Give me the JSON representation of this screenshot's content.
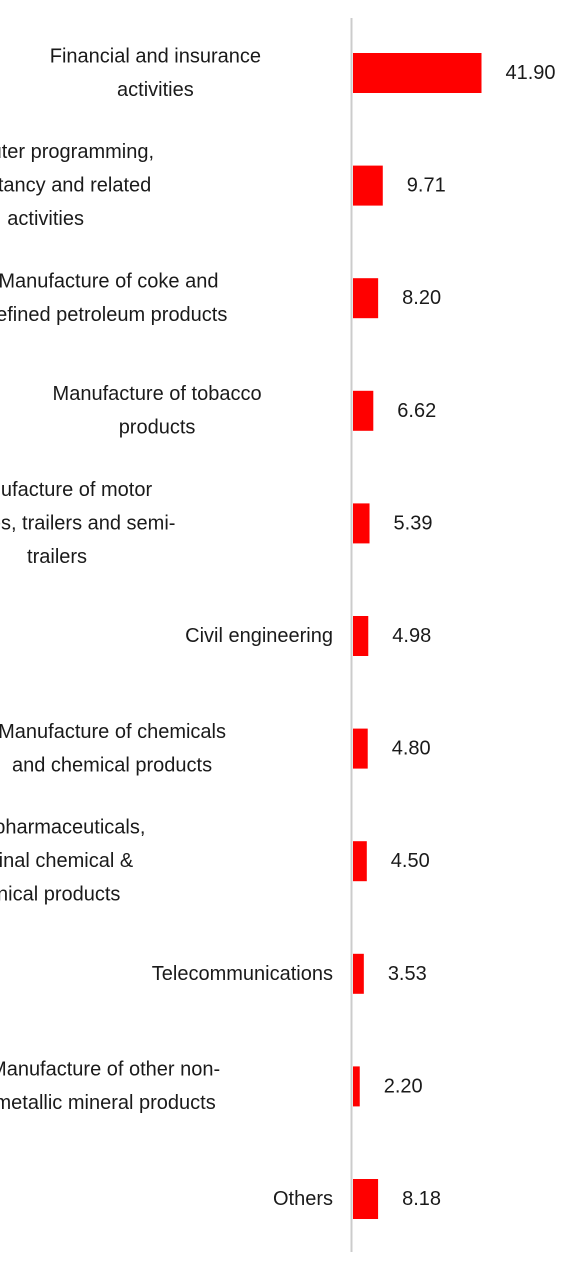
{
  "chart_data": {
    "type": "bar",
    "orientation": "horizontal",
    "title": "",
    "xlabel": "",
    "ylabel": "",
    "categories": [
      [
        "Financial and insurance",
        "activities"
      ],
      [
        "Computer programming,",
        "consultancy and related",
        "activities"
      ],
      [
        "Manufacture of coke and",
        "refined petroleum products"
      ],
      [
        "Manufacture of tobacco",
        "products"
      ],
      [
        "Manufacture of motor",
        "vehicles, trailers and semi-",
        "trailers"
      ],
      [
        "Civil engineering"
      ],
      [
        "Manufacture of chemicals",
        "and chemical products"
      ],
      [
        "Mfg of pharmaceuticals,",
        "medicinal chemical &",
        "botanical products"
      ],
      [
        "Telecommunications"
      ],
      [
        "Manufacture of other non-",
        "metallic mineral products"
      ],
      [
        "Others"
      ]
    ],
    "values": [
      41.9,
      9.71,
      8.2,
      6.62,
      5.39,
      4.98,
      4.8,
      4.5,
      3.53,
      2.2,
      8.18
    ],
    "value_labels": [
      "41.90",
      "9.71",
      "8.20",
      "6.62",
      "5.39",
      "4.98",
      "4.80",
      "4.50",
      "3.53",
      "2.20",
      "8.18"
    ],
    "xlim": [
      0,
      45
    ],
    "grid": false,
    "legend": "none",
    "bar_color": "#ff0000",
    "axis_color": "#cccccc"
  }
}
